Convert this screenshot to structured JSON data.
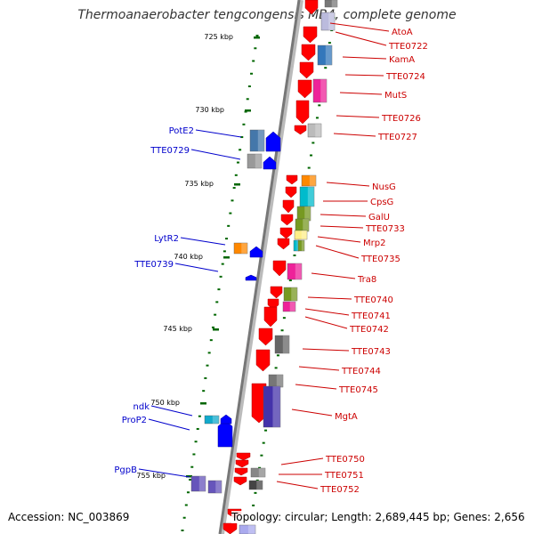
{
  "title": "Thermoanaerobacter tengcongensis MB4, complete genome",
  "footer": {
    "accession": "Accession: NC_003869",
    "stats": "Topology: circular; Length: 2,689,445 bp; Genes: 2,656"
  },
  "colors": {
    "backbone": "#888888",
    "forward_genes": "#ff0000",
    "reverse_genes": "#0000ff",
    "ticks": "#006600",
    "forward_labels": "#cc0000",
    "reverse_labels": "#0000cc"
  },
  "scale_labels": [
    "725 kbp",
    "730 kbp",
    "735 kbp",
    "740 kbp",
    "745 kbp",
    "750 kbp",
    "755 kbp"
  ],
  "forward_labels": [
    "AtoA",
    "TTE0722",
    "KamA",
    "TTE0724",
    "MutS",
    "TTE0726",
    "TTE0727",
    "NusG",
    "CpsG",
    "GalU",
    "TTE0733",
    "Mrp2",
    "TTE0735",
    "Tra8",
    "TTE0740",
    "TTE0741",
    "TTE0742",
    "TTE0743",
    "TTE0744",
    "TTE0745",
    "MgtA",
    "TTE0750",
    "TTE0751",
    "TTE0752"
  ],
  "reverse_labels": [
    "PotE2",
    "TTE0729",
    "LytR2",
    "TTE0739",
    "ndk",
    "ProP2",
    "PgpB"
  ]
}
